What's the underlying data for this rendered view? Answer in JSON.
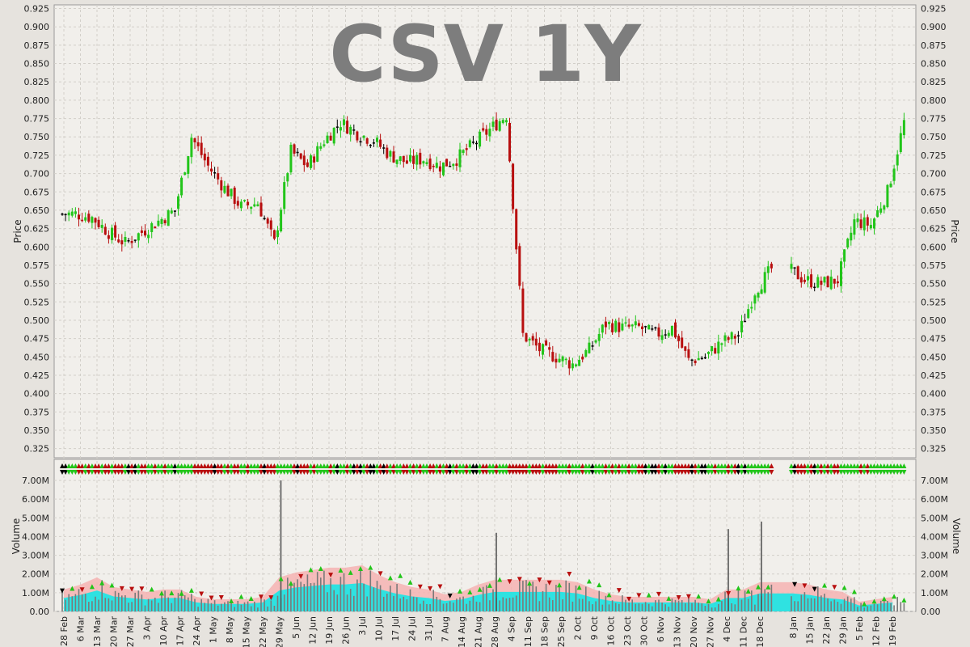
{
  "chart_data": {
    "type": "candlestick",
    "title": "CSV 1Y",
    "price_axis": {
      "label": "Price",
      "ylim": [
        0.3125,
        0.93
      ],
      "ticks": [
        "0.925",
        "0.900",
        "0.875",
        "0.850",
        "0.825",
        "0.800",
        "0.775",
        "0.750",
        "0.725",
        "0.700",
        "0.675",
        "0.650",
        "0.625",
        "0.600",
        "0.575",
        "0.550",
        "0.525",
        "0.500",
        "0.475",
        "0.450",
        "0.425",
        "0.400",
        "0.375",
        "0.350",
        "0.325"
      ]
    },
    "volume_axis": {
      "label": "Volume",
      "ylim": [
        0,
        7000000
      ],
      "ticks": [
        "7.00M",
        "6.00M",
        "5.00M",
        "4.00M",
        "3.00M",
        "2.00M",
        "1.00M",
        "0.00"
      ]
    },
    "x_labels": [
      "28 Feb",
      "6 Mar",
      "13 Mar",
      "20 Mar",
      "27 Mar",
      "3 Apr",
      "10 Apr",
      "17 Apr",
      "24 Apr",
      "1 May",
      "8 May",
      "15 May",
      "22 May",
      "29 May",
      "5 Jun",
      "12 Jun",
      "19 Jun",
      "26 Jun",
      "3 Jul",
      "10 Jul",
      "17 Jul",
      "24 Jul",
      "31 Jul",
      "7 Aug",
      "14 Aug",
      "21 Aug",
      "28 Aug",
      "4 Sep",
      "11 Sep",
      "18 Sep",
      "25 Sep",
      "2 Oct",
      "9 Oct",
      "16 Oct",
      "23 Oct",
      "30 Oct",
      "6 Nov",
      "13 Nov",
      "20 Nov",
      "27 Nov",
      "4 Dec",
      "11 Dec",
      "18 Dec",
      "8 Jan",
      "15 Jan",
      "22 Jan",
      "29 Jan",
      "5 Feb",
      "12 Feb",
      "19 Feb"
    ],
    "weekly_closes": [
      0.645,
      0.64,
      0.62,
      0.605,
      0.62,
      0.635,
      0.65,
      0.75,
      0.71,
      0.68,
      0.655,
      0.66,
      0.605,
      0.73,
      0.71,
      0.745,
      0.77,
      0.755,
      0.745,
      0.725,
      0.715,
      0.72,
      0.71,
      0.72,
      0.74,
      0.76,
      0.78,
      0.48,
      0.46,
      0.45,
      0.44,
      0.46,
      0.495,
      0.49,
      0.49,
      0.48,
      0.49,
      0.445,
      0.45,
      0.47,
      0.48,
      0.54,
      0.57,
      0.555,
      0.55,
      0.555,
      0.635,
      0.63,
      0.675,
      0.77
    ],
    "weekly_volumes_avg": [
      0.9,
      1.1,
      1.4,
      1.0,
      0.9,
      0.8,
      0.9,
      0.9,
      0.6,
      0.5,
      0.5,
      0.5,
      0.6,
      1.4,
      1.6,
      1.7,
      1.8,
      1.8,
      1.9,
      1.5,
      1.2,
      1.0,
      0.9,
      0.7,
      0.8,
      1.1,
      1.3,
      1.3,
      1.3,
      1.3,
      1.3,
      1.2,
      0.9,
      0.7,
      0.6,
      0.6,
      0.6,
      0.6,
      0.6,
      0.5,
      0.9,
      0.9,
      1.2,
      1.2,
      1.1,
      0.9,
      0.8,
      0.4,
      0.5,
      0.6
    ],
    "volume_spikes": [
      {
        "date": "29 May",
        "volume": 7000000
      },
      {
        "date": "28 Aug",
        "volume": 4200000
      },
      {
        "date": "4 Dec",
        "volume": 4400000
      },
      {
        "date": "18 Dec",
        "volume": 4800000
      }
    ],
    "colors": {
      "up": "#22c51a",
      "down": "#b80f0f",
      "flat": "#000000",
      "band_outer": "#f6b3b3",
      "band_inner": "#19e6e6",
      "volume_bar": "#7a7a7a",
      "plot_bg": "#f1efeb",
      "grid": "#d2cfc9"
    },
    "grid": true
  }
}
